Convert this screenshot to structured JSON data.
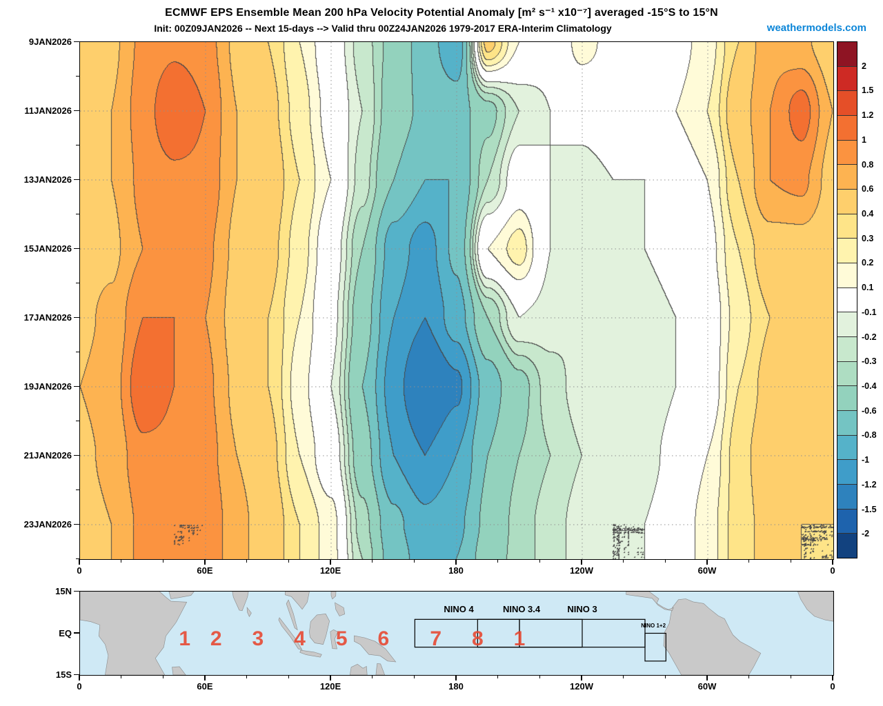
{
  "header": {
    "title": "ECMWF EPS Ensemble Mean 200 hPa Velocity Potential Anomaly [m² s⁻¹ x10⁻⁷] averaged -15°S to 15°N",
    "subtitle": "Init: 00Z09JAN2026 -- Next 15-days --> Valid thru 00Z24JAN2026 1979-2017 ERA-Interim Climatology",
    "watermark": "weathermodels.com",
    "watermark_color": "#0c86d8"
  },
  "axes": {
    "x_labels": [
      "0",
      "60E",
      "120E",
      "180",
      "120W",
      "60W",
      "0"
    ],
    "y_labels": [
      "9JAN2026",
      "11JAN2026",
      "13JAN2026",
      "15JAN2026",
      "17JAN2026",
      "19JAN2026",
      "21JAN2026",
      "23JAN2026"
    ]
  },
  "colorbar": {
    "labels_top_to_bottom": [
      "2",
      "1.5",
      "1.2",
      "1",
      "0.8",
      "0.6",
      "0.4",
      "0.3",
      "0.2",
      "0.1",
      "-0.1",
      "-0.2",
      "-0.3",
      "-0.4",
      "-0.6",
      "-0.8",
      "-1",
      "-1.2",
      "-1.5",
      "-2"
    ]
  },
  "chart_data": {
    "type": "heatmap",
    "title": "ECMWF EPS Ensemble Mean 200 hPa Velocity Potential Anomaly",
    "units": "m² s⁻¹ x10⁻⁷",
    "xlabel_ticks": [
      "0",
      "60E",
      "120E",
      "180",
      "120W",
      "60W",
      "0"
    ],
    "ylabel_ticks": [
      "9JAN2026",
      "11JAN2026",
      "13JAN2026",
      "15JAN2026",
      "17JAN2026",
      "19JAN2026",
      "21JAN2026",
      "23JAN2026"
    ],
    "x_range_deg": [
      0,
      360
    ],
    "grid_lons": [
      0,
      15,
      30,
      45,
      60,
      75,
      90,
      105,
      120,
      135,
      150,
      165,
      180,
      195,
      210,
      225,
      240,
      255,
      270,
      285,
      300,
      315,
      330,
      345,
      360
    ],
    "grid_days_jan": [
      9,
      11,
      13,
      15,
      17,
      19,
      21,
      23,
      24
    ],
    "values": [
      [
        0.45,
        0.55,
        0.85,
        0.95,
        0.9,
        0.55,
        0.4,
        0.2,
        0.0,
        -0.25,
        -0.45,
        -0.7,
        -0.95,
        0.45,
        0.1,
        -0.05,
        0.15,
        0.05,
        0.0,
        0.05,
        0.15,
        0.4,
        0.75,
        0.65,
        0.45
      ],
      [
        0.5,
        0.6,
        0.9,
        1.2,
        1.0,
        0.6,
        0.45,
        0.25,
        0.05,
        -0.2,
        -0.5,
        -0.65,
        -0.7,
        -0.45,
        -0.2,
        -0.1,
        -0.05,
        0.0,
        0.0,
        0.1,
        0.2,
        0.5,
        0.8,
        1.1,
        0.6
      ],
      [
        0.55,
        0.6,
        0.85,
        0.95,
        0.95,
        0.6,
        0.5,
        0.3,
        0.1,
        -0.25,
        -0.6,
        -0.8,
        -0.8,
        -0.3,
        0.0,
        -0.1,
        -0.15,
        -0.1,
        -0.1,
        0.0,
        0.1,
        0.4,
        0.8,
        0.85,
        0.5
      ],
      [
        0.5,
        0.55,
        0.8,
        0.9,
        0.85,
        0.55,
        0.45,
        0.25,
        0.0,
        -0.4,
        -0.9,
        -1.1,
        -0.75,
        0.1,
        0.25,
        -0.1,
        -0.2,
        -0.15,
        -0.1,
        -0.05,
        0.05,
        0.3,
        0.5,
        0.5,
        0.4
      ],
      [
        0.55,
        0.65,
        1.0,
        1.0,
        0.8,
        0.5,
        0.4,
        0.2,
        -0.05,
        -0.5,
        -1.0,
        -1.2,
        -0.9,
        -0.4,
        -0.1,
        -0.15,
        -0.2,
        -0.2,
        -0.15,
        -0.1,
        0.0,
        0.25,
        0.4,
        0.45,
        0.45
      ],
      [
        0.6,
        0.7,
        1.15,
        1.0,
        0.85,
        0.55,
        0.4,
        0.15,
        -0.1,
        -0.6,
        -1.1,
        -1.5,
        -1.25,
        -0.7,
        -0.45,
        -0.25,
        -0.15,
        -0.2,
        -0.2,
        -0.1,
        0.0,
        0.3,
        0.45,
        0.5,
        0.5
      ],
      [
        0.55,
        0.65,
        0.95,
        0.95,
        0.9,
        0.6,
        0.45,
        0.2,
        0.0,
        -0.5,
        -1.0,
        -1.2,
        -1.0,
        -0.6,
        -0.4,
        -0.3,
        -0.2,
        -0.15,
        -0.15,
        -0.05,
        0.1,
        0.35,
        0.5,
        0.45,
        0.45
      ],
      [
        0.5,
        0.6,
        0.85,
        1.0,
        1.0,
        0.65,
        0.5,
        0.3,
        0.15,
        -0.35,
        -0.75,
        -0.95,
        -0.85,
        -0.55,
        -0.35,
        -0.25,
        -0.15,
        -0.1,
        -0.1,
        0.0,
        0.15,
        0.35,
        0.45,
        0.4,
        0.4
      ],
      [
        0.5,
        0.6,
        0.85,
        1.0,
        1.0,
        0.65,
        0.5,
        0.3,
        0.15,
        -0.3,
        -0.7,
        -0.9,
        -0.8,
        -0.5,
        -0.35,
        -0.25,
        -0.15,
        -0.1,
        -0.1,
        0.0,
        0.15,
        0.35,
        0.45,
        0.4,
        0.4
      ]
    ],
    "levels": [
      -2,
      -1.5,
      -1.2,
      -1,
      -0.8,
      -0.6,
      -0.4,
      -0.3,
      -0.2,
      -0.1,
      0.1,
      0.2,
      0.3,
      0.4,
      0.6,
      0.8,
      1,
      1.2,
      1.5,
      2
    ],
    "colors_low_to_high": [
      "#12427f",
      "#1e63ad",
      "#2e82bd",
      "#3f9dc9",
      "#55b2c9",
      "#74c4c3",
      "#93d2bd",
      "#aeddc2",
      "#c8e8cd",
      "#e2f2dd",
      "#ffffff",
      "#fffbd8",
      "#fff3ae",
      "#fee488",
      "#fecf6c",
      "#fdb351",
      "#fb9340",
      "#f37031",
      "#e54f28",
      "#ce2a24",
      "#8e1423"
    ],
    "grid_on": true,
    "legend_position": "right"
  },
  "map": {
    "y_labels": [
      "15N",
      "EQ",
      "15S"
    ],
    "x_labels": [
      "0",
      "60E",
      "120E",
      "180",
      "120W",
      "60W",
      "0"
    ],
    "ocean_color": "#cfe9f5",
    "land_color": "#c9c9c9",
    "nino_boxes": [
      {
        "label": "NINO 4",
        "lon1": 160,
        "lon2": 210,
        "lat1": 5,
        "lat2": -5
      },
      {
        "label": "NINO 3.4",
        "lon1": 190,
        "lon2": 240,
        "lat1": 5,
        "lat2": -5
      },
      {
        "label": "NINO 3",
        "lon1": 210,
        "lon2": 270,
        "lat1": 5,
        "lat2": -5
      },
      {
        "label": "NINO 1+2",
        "lon1": 270,
        "lon2": 280,
        "lat1": 0,
        "lat2": -10
      }
    ],
    "nino_labels": [
      {
        "text": "NINO 4",
        "lon": 181,
        "small": false
      },
      {
        "text": "NINO 3.4",
        "lon": 211,
        "small": false
      },
      {
        "text": "NINO 3",
        "lon": 240,
        "small": false
      },
      {
        "text": "NINO 1+2",
        "lon": 274,
        "small": true
      }
    ],
    "phase_numbers": [
      {
        "n": "1",
        "lon": 50
      },
      {
        "n": "2",
        "lon": 65
      },
      {
        "n": "3",
        "lon": 85
      },
      {
        "n": "4",
        "lon": 105
      },
      {
        "n": "5",
        "lon": 125
      },
      {
        "n": "6",
        "lon": 145
      },
      {
        "n": "7",
        "lon": 170
      },
      {
        "n": "8",
        "lon": 190
      },
      {
        "n": "1",
        "lon": 210
      }
    ],
    "phase_number_color": "#e8462f"
  }
}
